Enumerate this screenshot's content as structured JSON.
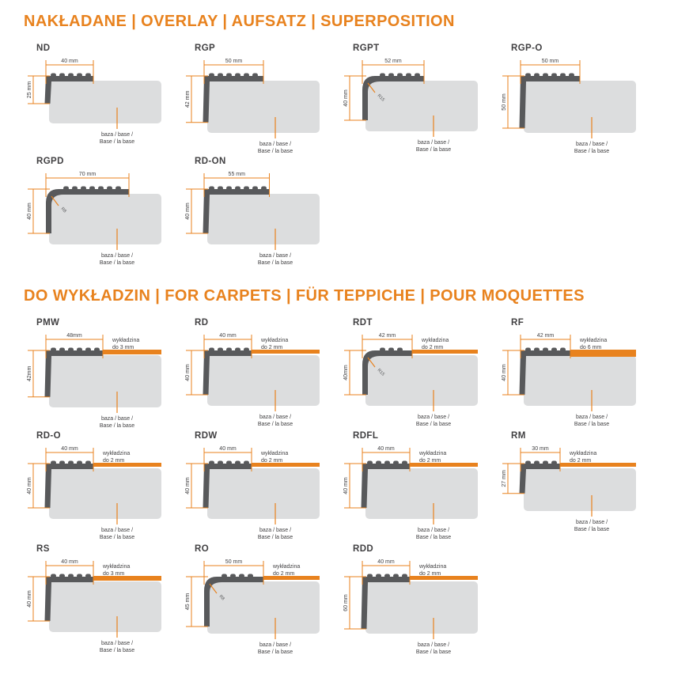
{
  "colors": {
    "accent_orange": "#E8821E",
    "profile_gray": "#58595B",
    "base_gray": "#DCDDDE",
    "text_dark": "#414042",
    "background": "#FFFFFF"
  },
  "labels": {
    "base_line1": "baza / base /",
    "base_line2": "Base / la base",
    "carpet_word": "wykładzina"
  },
  "sections": [
    {
      "heading": "NAKŁADANE | OVERLAY | AUFSATZ | SUPERPOSITION",
      "profiles": [
        {
          "code": "ND",
          "width_label": "40 mm",
          "height_label": "25 mm",
          "width_mm": 40,
          "height_mm": 25,
          "corner": "straight"
        },
        {
          "code": "RGP",
          "width_label": "50 mm",
          "height_label": "42 mm",
          "width_mm": 50,
          "height_mm": 42,
          "corner": "straight"
        },
        {
          "code": "RGPT",
          "width_label": "52 mm",
          "height_label": "40 mm",
          "width_mm": 52,
          "height_mm": 40,
          "corner": "rounded",
          "radius_label": "R15"
        },
        {
          "code": "RGP-O",
          "width_label": "50 mm",
          "height_label": "50 mm",
          "width_mm": 50,
          "height_mm": 50,
          "corner": "straight"
        },
        {
          "code": "RGPD",
          "width_label": "70 mm",
          "height_label": "40 mm",
          "width_mm": 70,
          "height_mm": 40,
          "corner": "rounded",
          "radius_label": "R8"
        },
        {
          "code": "RD-ON",
          "width_label": "55 mm",
          "height_label": "40 mm",
          "width_mm": 55,
          "height_mm": 40,
          "corner": "straight"
        }
      ]
    },
    {
      "heading": "DO WYKŁADZIN | FOR CARPETS | FÜR TEPPICHE | POUR MOQUETTES",
      "profiles": [
        {
          "code": "PMW",
          "width_label": "48mm",
          "height_label": "42mm",
          "width_mm": 48,
          "height_mm": 42,
          "corner": "straight",
          "carpet_mm": 3,
          "carpet_line1": "wykładzina",
          "carpet_line2": "do 3 mm"
        },
        {
          "code": "RD",
          "width_label": "40 mm",
          "height_label": "40 mm",
          "width_mm": 40,
          "height_mm": 40,
          "corner": "straight",
          "carpet_mm": 2,
          "carpet_line1": "wykładzina",
          "carpet_line2": "do 2 mm"
        },
        {
          "code": "RDT",
          "width_label": "42 mm",
          "height_label": "40mm",
          "width_mm": 42,
          "height_mm": 40,
          "corner": "rounded",
          "radius_label": "R15",
          "carpet_mm": 2,
          "carpet_line1": "wykładzina",
          "carpet_line2": "do 2 mm"
        },
        {
          "code": "RF",
          "width_label": "42 mm",
          "height_label": "40 mm",
          "width_mm": 42,
          "height_mm": 40,
          "corner": "straight",
          "carpet_mm": 6,
          "carpet_line1": "wykładzina",
          "carpet_line2": "do 6 mm"
        },
        {
          "code": "RD-O",
          "width_label": "40 mm",
          "height_label": "40 mm",
          "width_mm": 40,
          "height_mm": 40,
          "corner": "straight",
          "carpet_mm": 2,
          "carpet_line1": "wykładzina",
          "carpet_line2": "do 2 mm"
        },
        {
          "code": "RDW",
          "width_label": "40 mm",
          "height_label": "40 mm",
          "width_mm": 40,
          "height_mm": 40,
          "corner": "straight",
          "carpet_mm": 2,
          "carpet_line1": "wykładzina",
          "carpet_line2": "do 2 mm"
        },
        {
          "code": "RDFL",
          "width_label": "40 mm",
          "height_label": "40 mm",
          "width_mm": 40,
          "height_mm": 40,
          "corner": "straight",
          "carpet_mm": 2,
          "carpet_line1": "wykładzina",
          "carpet_line2": "do 2 mm"
        },
        {
          "code": "RM",
          "width_label": "30 mm",
          "height_label": "27 mm",
          "width_mm": 30,
          "height_mm": 27,
          "corner": "straight",
          "carpet_mm": 2,
          "carpet_line1": "wykładzina",
          "carpet_line2": "do 2 mm"
        },
        {
          "code": "RS",
          "width_label": "40 mm",
          "height_label": "40 mm",
          "width_mm": 40,
          "height_mm": 40,
          "corner": "straight",
          "carpet_mm": 3,
          "carpet_line1": "wykładzina",
          "carpet_line2": "do 3 mm"
        },
        {
          "code": "RO",
          "width_label": "50 mm",
          "height_label": "45 mm",
          "width_mm": 50,
          "height_mm": 45,
          "corner": "rounded",
          "radius_label": "R8",
          "carpet_mm": 2,
          "carpet_line1": "wykładzina",
          "carpet_line2": "do 2 mm"
        },
        {
          "code": "RDD",
          "width_label": "40 mm",
          "height_label": "60 mm",
          "width_mm": 40,
          "height_mm": 60,
          "corner": "straight",
          "carpet_mm": 2,
          "carpet_line1": "wykładzina",
          "carpet_line2": "do 2 mm"
        }
      ]
    }
  ]
}
